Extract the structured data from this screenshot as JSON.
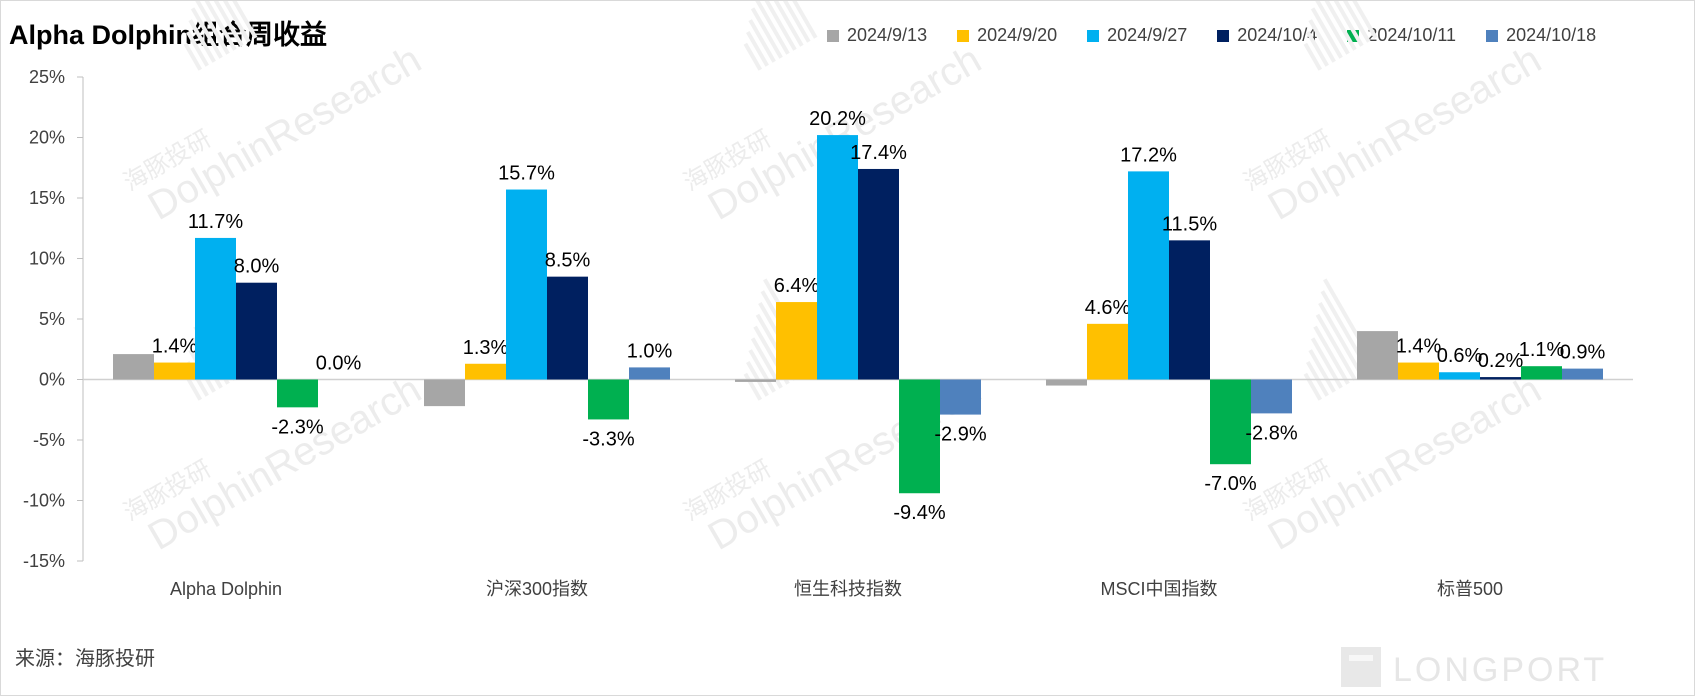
{
  "title": "Alpha Dolphin组合周收益",
  "source": "来源：海豚投研",
  "watermark": {
    "text": "DolphinResearch",
    "subtext": "海豚投研",
    "logo_text": "LONGPORT"
  },
  "chart_data": {
    "type": "bar",
    "title": "Alpha Dolphin组合周收益",
    "xlabel": "",
    "ylabel": "",
    "ylim": [
      -15,
      25
    ],
    "y_ticks": [
      25,
      20,
      15,
      10,
      5,
      0,
      -5,
      -10,
      -15
    ],
    "y_tick_labels": [
      "25%",
      "20%",
      "15%",
      "10%",
      "5%",
      "0%",
      "-5%",
      "-10%",
      "-15%"
    ],
    "grid": false,
    "legend_position": "top-right",
    "categories": [
      "Alpha Dolphin",
      "沪深300指数",
      "恒生科技指数",
      "MSCI中国指数",
      "标普500"
    ],
    "series": [
      {
        "name": "2024/9/13",
        "color": "#a6a6a6",
        "values": [
          2.1,
          -2.2,
          -0.2,
          -0.5,
          4.0
        ],
        "labels": [
          "",
          "",
          "",
          "",
          ""
        ]
      },
      {
        "name": "2024/9/20",
        "color": "#ffc000",
        "values": [
          1.4,
          1.3,
          6.4,
          4.6,
          1.4
        ],
        "labels": [
          "1.4%",
          "1.3%",
          "6.4%",
          "4.6%",
          "1.4%"
        ]
      },
      {
        "name": "2024/9/27",
        "color": "#00b0f0",
        "values": [
          11.7,
          15.7,
          20.2,
          17.2,
          0.6
        ],
        "labels": [
          "11.7%",
          "15.7%",
          "20.2%",
          "17.2%",
          "0.6%"
        ]
      },
      {
        "name": "2024/10/4",
        "color": "#002060",
        "values": [
          8.0,
          8.5,
          17.4,
          11.5,
          0.2
        ],
        "labels": [
          "8.0%",
          "8.5%",
          "17.4%",
          "11.5%",
          "0.2%"
        ]
      },
      {
        "name": "2024/10/11",
        "color": "#00b050",
        "values": [
          -2.3,
          -3.3,
          -9.4,
          -7.0,
          1.1
        ],
        "labels": [
          "-2.3%",
          "-3.3%",
          "-9.4%",
          "-7.0%",
          "1.1%"
        ]
      },
      {
        "name": "2024/10/18",
        "color": "#4f81bd",
        "values": [
          0.0,
          1.0,
          -2.9,
          -2.8,
          0.9
        ],
        "labels": [
          "0.0%",
          "1.0%",
          "-2.9%",
          "-2.8%",
          "0.9%"
        ]
      }
    ]
  }
}
